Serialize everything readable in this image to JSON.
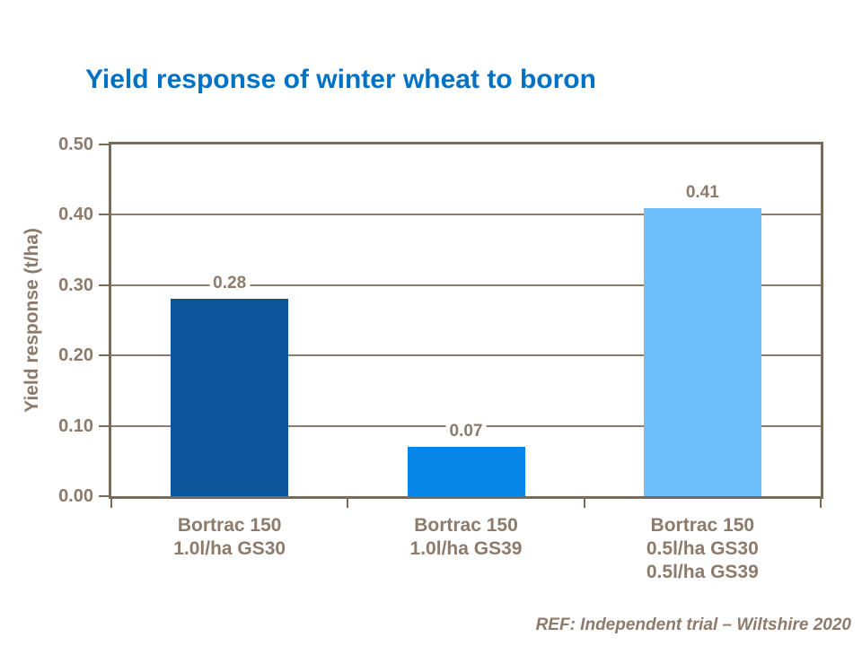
{
  "chart_data": {
    "type": "bar",
    "title": "Yield response of winter wheat to boron",
    "title_color": "#0072C6",
    "ylabel": "Yield response (t/ha)",
    "xlabel": "",
    "categories": [
      "Bortrac 150 1.0l/ha GS30",
      "Bortrac 150 1.0l/ha GS39",
      "Bortrac 150 0.5l/ha GS30 0.5l/ha GS39"
    ],
    "category_lines": [
      [
        "Bortrac 150",
        "1.0l/ha GS30"
      ],
      [
        "Bortrac 150",
        "1.0l/ha GS39"
      ],
      [
        "Bortrac 150",
        "0.5l/ha GS30",
        "0.5l/ha GS39"
      ]
    ],
    "values": [
      0.28,
      0.07,
      0.41
    ],
    "value_labels": [
      "0.28",
      "0.07",
      "0.41"
    ],
    "bar_colors": [
      "#0D559A",
      "#0886E8",
      "#6CBFFA"
    ],
    "ylim": [
      0,
      0.5
    ],
    "y_ticks": [
      "0.00",
      "0.10",
      "0.20",
      "0.30",
      "0.40",
      "0.50"
    ],
    "y_tick_values": [
      0,
      0.1,
      0.2,
      0.3,
      0.4,
      0.5
    ],
    "grid": true,
    "legend": "none",
    "axis_color": "#7A6B59",
    "grid_color": "#8C7B6B",
    "text_color": "#8C7B6B"
  },
  "footer": {
    "ref_note": "REF: Independent trial – Wiltshire 2020"
  }
}
